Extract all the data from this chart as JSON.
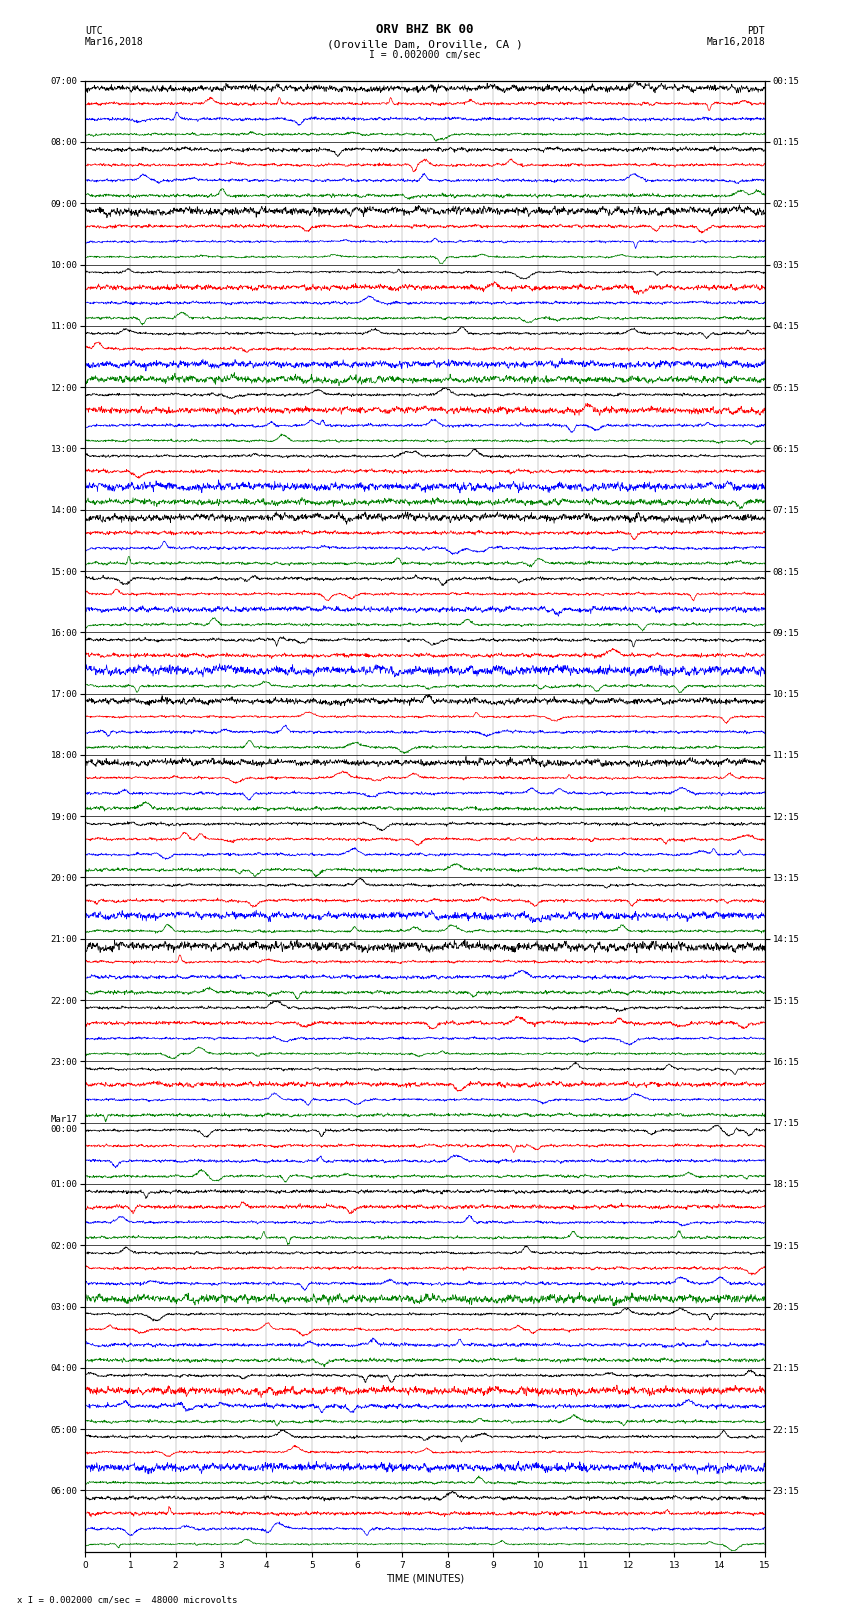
{
  "title_line1": "ORV BHZ BK 00",
  "title_line2": "(Oroville Dam, Oroville, CA )",
  "scale_label": "I = 0.002000 cm/sec",
  "bottom_label": "x I = 0.002000 cm/sec =  48000 microvolts",
  "left_header_line1": "UTC",
  "left_header_line2": "Mar16,2018",
  "right_header_line1": "PDT",
  "right_header_line2": "Mar16,2018",
  "xlabel": "TIME (MINUTES)",
  "left_times": [
    "07:00",
    "08:00",
    "09:00",
    "10:00",
    "11:00",
    "12:00",
    "13:00",
    "14:00",
    "15:00",
    "16:00",
    "17:00",
    "18:00",
    "19:00",
    "20:00",
    "21:00",
    "22:00",
    "23:00",
    "Mar17\n00:00",
    "01:00",
    "02:00",
    "03:00",
    "04:00",
    "05:00",
    "06:00"
  ],
  "right_times": [
    "00:15",
    "01:15",
    "02:15",
    "03:15",
    "04:15",
    "05:15",
    "06:15",
    "07:15",
    "08:15",
    "09:15",
    "10:15",
    "11:15",
    "12:15",
    "13:15",
    "14:15",
    "15:15",
    "16:15",
    "17:15",
    "18:15",
    "19:15",
    "20:15",
    "21:15",
    "22:15",
    "23:15"
  ],
  "n_rows": 24,
  "traces_per_row": 4,
  "minutes": 15,
  "colors": [
    "black",
    "red",
    "blue",
    "green"
  ],
  "fig_width": 8.5,
  "fig_height": 16.13,
  "bg_color": "white",
  "trace_linewidth": 0.5,
  "font_size_title": 9,
  "font_size_subtitle": 8,
  "font_size_labels": 7,
  "font_size_tick": 6.5,
  "font_size_bottom": 6.5
}
